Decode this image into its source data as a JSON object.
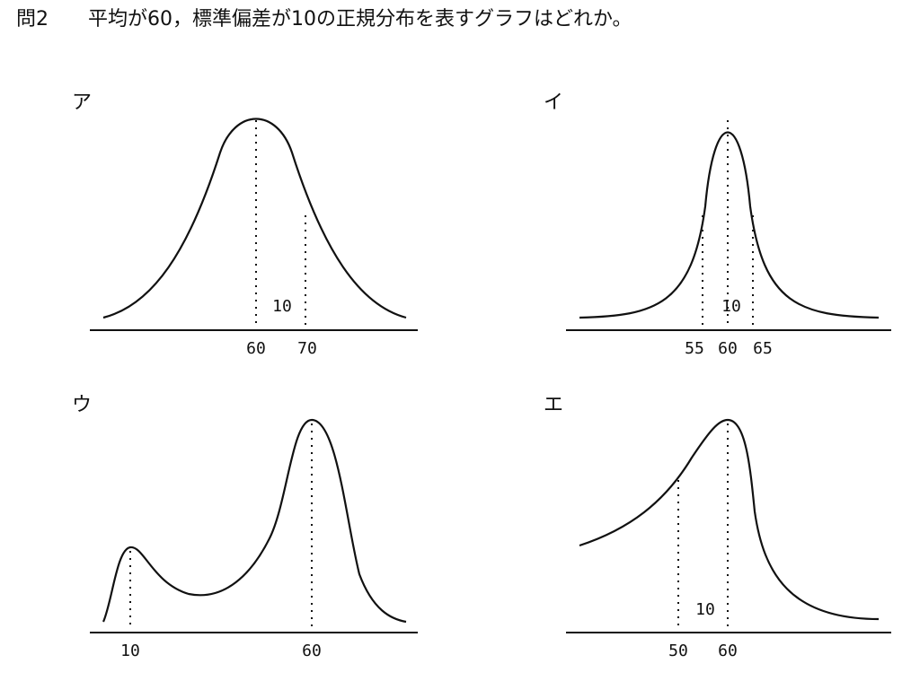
{
  "question": {
    "number": "問2",
    "text": "平均が60，標準偏差が10の正規分布を表すグラフはどれか。"
  },
  "graphs": [
    {
      "label": "ア",
      "axis_labels": [
        "60",
        "70"
      ],
      "annotation": "10"
    },
    {
      "label": "イ",
      "axis_labels": [
        "55",
        "60",
        "65"
      ],
      "annotation": "10"
    },
    {
      "label": "ウ",
      "axis_labels": [
        "10",
        "60"
      ]
    },
    {
      "label": "エ",
      "axis_labels": [
        "50",
        "60"
      ],
      "annotation": "10"
    }
  ]
}
